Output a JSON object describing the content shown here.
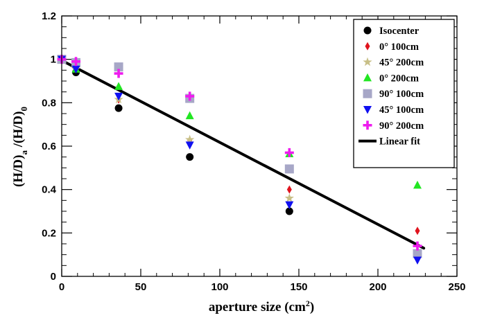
{
  "chart_data": {
    "type": "scatter",
    "title": "",
    "xlabel": {
      "main": "aperture size (cm",
      "sup": "2",
      "end": ")"
    },
    "ylabel": {
      "p1": "(H/D)",
      "sub1": "a",
      "p2": " /(H/D)",
      "sub2": "0"
    },
    "xlim": [
      0,
      250
    ],
    "ylim": [
      0,
      1.2
    ],
    "x_ticks": [
      0,
      50,
      100,
      150,
      200,
      250
    ],
    "x_tick_labels": [
      "0",
      "50",
      "100",
      "150",
      "200",
      "250"
    ],
    "y_ticks": [
      0,
      0.2,
      0.4,
      0.6,
      0.8,
      1.0,
      1.2
    ],
    "y_tick_labels": [
      "0",
      "0.2",
      "0.4",
      "0.6",
      "0.8",
      "1",
      "1.2"
    ],
    "grid": false,
    "legend_position": "top-right",
    "series": [
      {
        "name": "Isocenter",
        "marker": "circle",
        "color": "#000000",
        "points": [
          [
            0,
            1.0
          ],
          [
            9,
            0.94
          ],
          [
            36,
            0.775
          ],
          [
            81,
            0.55
          ],
          [
            144,
            0.3
          ],
          [
            225,
            0.105
          ]
        ]
      },
      {
        "name": "0° 100cm",
        "marker": "diamond",
        "color": "#e0141e",
        "points": [
          [
            0,
            1.0
          ],
          [
            9,
            0.955
          ],
          [
            36,
            0.815
          ],
          [
            81,
            0.625
          ],
          [
            144,
            0.4
          ],
          [
            225,
            0.21
          ]
        ]
      },
      {
        "name": "45° 200cm",
        "marker": "star",
        "color": "#c8bf87",
        "points": [
          [
            0,
            1.0
          ],
          [
            9,
            0.955
          ],
          [
            36,
            0.815
          ],
          [
            81,
            0.63
          ],
          [
            144,
            0.36
          ],
          [
            225,
            0.1
          ]
        ]
      },
      {
        "name": "0° 200cm",
        "marker": "triangle-up",
        "color": "#22e622",
        "points": [
          [
            0,
            1.0
          ],
          [
            9,
            0.955
          ],
          [
            36,
            0.875
          ],
          [
            81,
            0.74
          ],
          [
            144,
            0.565
          ],
          [
            225,
            0.42
          ]
        ]
      },
      {
        "name": "90° 100cm",
        "marker": "square",
        "color": "#a7a7c7",
        "points": [
          [
            0,
            1.0
          ],
          [
            9,
            0.985
          ],
          [
            36,
            0.965
          ],
          [
            81,
            0.82
          ],
          [
            144,
            0.495
          ],
          [
            225,
            0.105
          ]
        ]
      },
      {
        "name": "45° 100cm",
        "marker": "triangle-down",
        "color": "#1010f0",
        "points": [
          [
            0,
            1.0
          ],
          [
            9,
            0.955
          ],
          [
            36,
            0.83
          ],
          [
            81,
            0.605
          ],
          [
            144,
            0.33
          ],
          [
            225,
            0.075
          ]
        ]
      },
      {
        "name": "90° 200cm",
        "marker": "cross",
        "color": "#ee1bee",
        "points": [
          [
            0,
            1.0
          ],
          [
            9,
            0.99
          ],
          [
            36,
            0.935
          ],
          [
            81,
            0.83
          ],
          [
            144,
            0.57
          ],
          [
            225,
            0.14
          ]
        ]
      }
    ],
    "fit": {
      "name": "Linear fit",
      "type": "line",
      "color": "#000000",
      "x": [
        0,
        229
      ],
      "y": [
        0.995,
        0.13
      ]
    }
  }
}
